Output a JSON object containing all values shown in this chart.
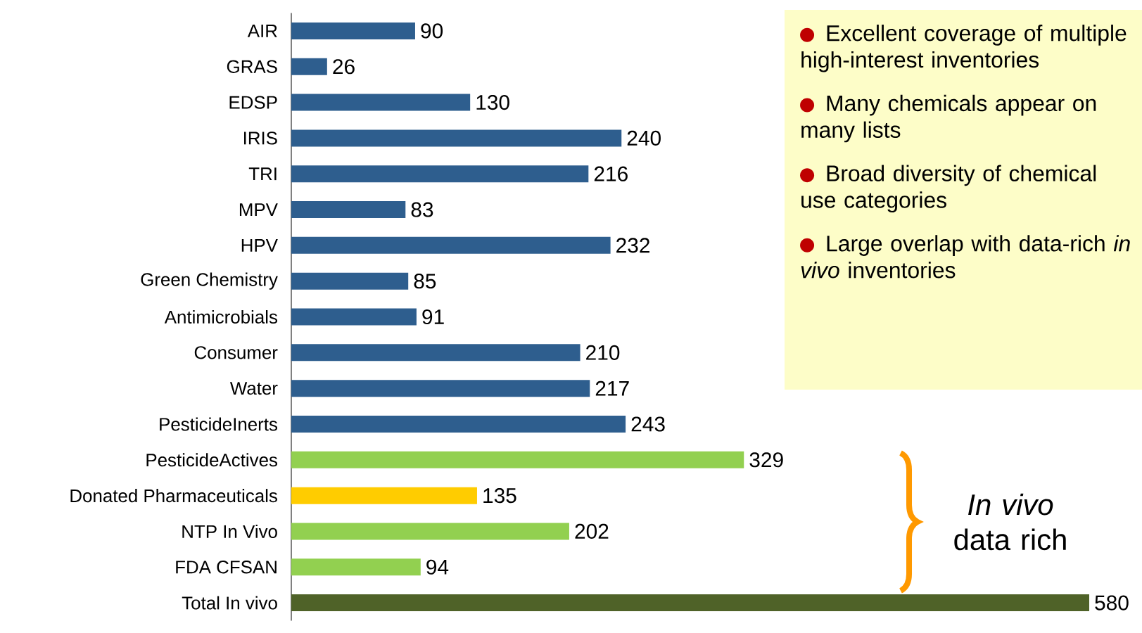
{
  "chart_data": {
    "type": "bar",
    "orientation": "horizontal",
    "data_labels": true,
    "categories": [
      "AIR",
      "GRAS",
      "EDSP",
      "IRIS",
      "TRI",
      "MPV",
      "HPV",
      "Green Chemistry",
      "Antimicrobials",
      "Consumer",
      "Water",
      "PesticideInerts",
      "PesticideActives",
      "Donated Pharmaceuticals",
      "NTP In Vivo",
      "FDA CFSAN",
      "Total In vivo"
    ],
    "values": [
      90,
      26,
      130,
      240,
      216,
      83,
      232,
      85,
      91,
      210,
      217,
      243,
      329,
      135,
      202,
      94,
      580
    ],
    "colors": [
      "#2e5e8e",
      "#2e5e8e",
      "#2e5e8e",
      "#2e5e8e",
      "#2e5e8e",
      "#2e5e8e",
      "#2e5e8e",
      "#2e5e8e",
      "#2e5e8e",
      "#2e5e8e",
      "#2e5e8e",
      "#2e5e8e",
      "#92d050",
      "#ffcc00",
      "#92d050",
      "#92d050",
      "#4f6228"
    ],
    "annotations": [
      "Excellent coverage of multiple high-interest inventories",
      "Many chemicals appear on many lists",
      "Broad diversity of chemical use categories",
      "Large overlap with data-rich *in vivo* inventories",
      "*In vivo* data rich"
    ]
  }
}
